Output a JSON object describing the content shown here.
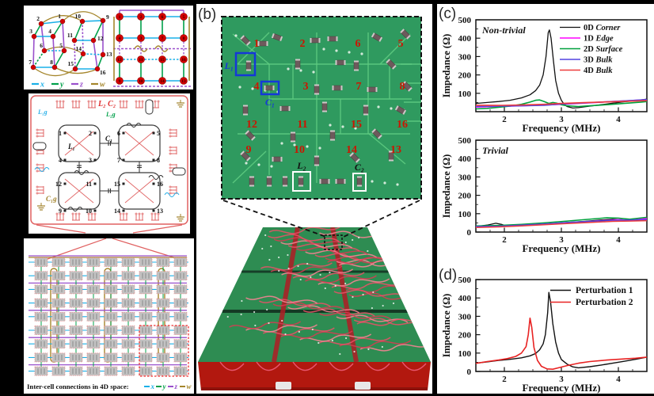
{
  "figure": {
    "panel_a": {
      "lattice": {
        "node_color": "#d40000",
        "legend": [
          {
            "label": "x",
            "color": "#1ab0e8"
          },
          {
            "label": "y",
            "color": "#00a04a"
          },
          {
            "label": "z",
            "color": "#9a50cc"
          },
          {
            "label": "w",
            "color": "#a5862c"
          }
        ],
        "tesseract_node_labels": [
          "1",
          "2",
          "3",
          "4",
          "5",
          "6",
          "7",
          "8",
          "9",
          "10",
          "11",
          "12",
          "13",
          "14",
          "15",
          "16"
        ],
        "grid_node_rows": [
          [
            "1",
            "2",
            "6",
            "5"
          ],
          [
            "4",
            "3",
            "7",
            "8"
          ],
          [
            "12",
            "11",
            "15",
            "16"
          ],
          [
            "9",
            "10",
            "14",
            "13"
          ]
        ]
      },
      "circuit": {
        "labels": {
          "l2c2": "L₂ C₂",
          "l1g": "L₁g",
          "l2g": "L₂g",
          "c1": "C₁",
          "l1": "L₁",
          "c1g": "C₁g"
        },
        "node_rows": [
          [
            "1",
            "2",
            "6",
            "5"
          ],
          [
            "4",
            "3",
            "7",
            "8"
          ],
          [
            "12",
            "11",
            "15",
            "16"
          ],
          [
            "9",
            "10",
            "14",
            "13"
          ]
        ]
      },
      "network": {
        "caption": "Inter-cell connections in 4D space:",
        "legend": [
          {
            "label": "x",
            "color": "#1ab0e8"
          },
          {
            "label": "y",
            "color": "#00a04a"
          },
          {
            "label": "z",
            "color": "#9a50cc"
          },
          {
            "label": "w",
            "color": "#a5862c"
          }
        ]
      }
    },
    "panel_b": {
      "label": "(b)",
      "pcb_number_rows": [
        [
          "1",
          "2",
          "6",
          "5"
        ],
        [
          "4",
          "3",
          "7",
          "8"
        ],
        [
          "12",
          "11",
          "15",
          "16"
        ],
        [
          "9",
          "10",
          "14",
          "13"
        ]
      ],
      "number_color": "#cc1500",
      "component_boxes": {
        "l1": "L₁",
        "c1": "C₁",
        "l2": "L₂",
        "c2": "C₂"
      }
    },
    "panel_c_label": "(c)",
    "panel_d_label": "(d)"
  },
  "chart_data": [
    {
      "type": "line",
      "annotation": "Non-trivial",
      "xlabel": "Frequency (MHz)",
      "ylabel": "Impedance (Ω)",
      "xlim": [
        1.5,
        4.5
      ],
      "ylim": [
        0,
        500
      ],
      "xticks": [
        2,
        3,
        4
      ],
      "yticks": [
        100,
        200,
        300,
        400,
        500
      ],
      "legend_position": "top-right",
      "series": [
        {
          "name": "0D",
          "name2": "Corner",
          "color": "#111111",
          "width": 1.3,
          "points": [
            [
              1.5,
              45
            ],
            [
              1.7,
              50
            ],
            [
              1.9,
              55
            ],
            [
              2.1,
              62
            ],
            [
              2.3,
              75
            ],
            [
              2.45,
              92
            ],
            [
              2.55,
              115
            ],
            [
              2.62,
              145
            ],
            [
              2.68,
              200
            ],
            [
              2.73,
              300
            ],
            [
              2.77,
              430
            ],
            [
              2.79,
              445
            ],
            [
              2.82,
              400
            ],
            [
              2.86,
              280
            ],
            [
              2.9,
              170
            ],
            [
              2.95,
              100
            ],
            [
              3.0,
              62
            ],
            [
              3.05,
              40
            ],
            [
              3.1,
              28
            ],
            [
              3.2,
              20
            ],
            [
              3.3,
              22
            ],
            [
              3.5,
              30
            ],
            [
              3.7,
              38
            ],
            [
              3.9,
              46
            ],
            [
              4.1,
              54
            ],
            [
              4.3,
              60
            ],
            [
              4.5,
              68
            ]
          ]
        },
        {
          "name": "1D",
          "name2": "Edge",
          "color": "#ff00ff",
          "width": 1.6,
          "points": [
            [
              1.5,
              25
            ],
            [
              1.8,
              28
            ],
            [
              2.1,
              30
            ],
            [
              2.4,
              33
            ],
            [
              2.7,
              36
            ],
            [
              3.0,
              40
            ],
            [
              3.3,
              45
            ],
            [
              3.6,
              50
            ],
            [
              3.9,
              55
            ],
            [
              4.2,
              60
            ],
            [
              4.5,
              65
            ]
          ]
        },
        {
          "name": "2D",
          "name2": "Surface",
          "color": "#00a03c",
          "width": 1.6,
          "points": [
            [
              1.5,
              15
            ],
            [
              1.7,
              18
            ],
            [
              1.9,
              24
            ],
            [
              2.1,
              30
            ],
            [
              2.3,
              40
            ],
            [
              2.45,
              52
            ],
            [
              2.55,
              62
            ],
            [
              2.62,
              64
            ],
            [
              2.7,
              55
            ],
            [
              2.78,
              45
            ],
            [
              2.85,
              50
            ],
            [
              2.92,
              46
            ],
            [
              3.0,
              38
            ],
            [
              3.1,
              32
            ],
            [
              3.3,
              28
            ],
            [
              3.5,
              32
            ],
            [
              3.8,
              38
            ],
            [
              4.1,
              45
            ],
            [
              4.4,
              52
            ],
            [
              4.5,
              55
            ]
          ]
        },
        {
          "name": "3D",
          "name2": "Bulk",
          "color": "#5244e0",
          "width": 1.6,
          "points": [
            [
              1.5,
              28
            ],
            [
              1.9,
              30
            ],
            [
              2.3,
              32
            ],
            [
              2.7,
              35
            ],
            [
              3.0,
              42
            ],
            [
              3.4,
              48
            ],
            [
              3.8,
              54
            ],
            [
              4.2,
              60
            ],
            [
              4.5,
              66
            ]
          ]
        },
        {
          "name": "4D",
          "name2": "Bulk",
          "color": "#ee3b3b",
          "width": 1.6,
          "points": [
            [
              1.5,
              35
            ],
            [
              1.9,
              34
            ],
            [
              2.3,
              36
            ],
            [
              2.7,
              40
            ],
            [
              3.0,
              45
            ],
            [
              3.4,
              49
            ],
            [
              3.8,
              53
            ],
            [
              4.2,
              57
            ],
            [
              4.5,
              60
            ]
          ]
        }
      ]
    },
    {
      "type": "line",
      "annotation": "Trivial",
      "xlabel": "Frequency (MHz)",
      "ylabel": "Impedance (Ω)",
      "xlim": [
        1.5,
        4.5
      ],
      "ylim": [
        0,
        500
      ],
      "xticks": [
        2,
        3,
        4
      ],
      "yticks": [
        0,
        100,
        200,
        300,
        400,
        500
      ],
      "legend_position": "none",
      "series": [
        {
          "name": "",
          "name2": "",
          "color": "#111111",
          "width": 1.3,
          "points": [
            [
              1.5,
              30
            ],
            [
              1.7,
              38
            ],
            [
              1.85,
              48
            ],
            [
              1.95,
              42
            ],
            [
              2.05,
              32
            ],
            [
              2.2,
              33
            ],
            [
              2.5,
              38
            ],
            [
              2.8,
              44
            ],
            [
              3.1,
              52
            ],
            [
              3.4,
              58
            ],
            [
              3.7,
              66
            ],
            [
              3.9,
              70
            ],
            [
              4.1,
              66
            ],
            [
              4.3,
              64
            ],
            [
              4.5,
              70
            ]
          ]
        },
        {
          "name": "",
          "name2": "",
          "color": "#ff00ff",
          "width": 1.5,
          "points": [
            [
              1.5,
              28
            ],
            [
              1.9,
              30
            ],
            [
              2.3,
              36
            ],
            [
              2.7,
              42
            ],
            [
              3.1,
              50
            ],
            [
              3.5,
              58
            ],
            [
              3.8,
              64
            ],
            [
              4.0,
              68
            ],
            [
              4.2,
              64
            ],
            [
              4.5,
              74
            ]
          ]
        },
        {
          "name": "",
          "name2": "",
          "color": "#00a03c",
          "width": 1.5,
          "points": [
            [
              1.5,
              33
            ],
            [
              1.9,
              36
            ],
            [
              2.3,
              42
            ],
            [
              2.7,
              50
            ],
            [
              3.1,
              60
            ],
            [
              3.5,
              70
            ],
            [
              3.8,
              78
            ],
            [
              4.0,
              76
            ],
            [
              4.2,
              70
            ],
            [
              4.5,
              80
            ]
          ]
        },
        {
          "name": "",
          "name2": "",
          "color": "#5244e0",
          "width": 1.5,
          "points": [
            [
              1.5,
              30
            ],
            [
              1.9,
              32
            ],
            [
              2.3,
              38
            ],
            [
              2.7,
              44
            ],
            [
              3.1,
              52
            ],
            [
              3.5,
              58
            ],
            [
              3.9,
              64
            ],
            [
              4.2,
              66
            ],
            [
              4.5,
              68
            ]
          ]
        },
        {
          "name": "",
          "name2": "",
          "color": "#ee3b3b",
          "width": 1.5,
          "points": [
            [
              1.5,
              25
            ],
            [
              1.9,
              28
            ],
            [
              2.3,
              33
            ],
            [
              2.7,
              40
            ],
            [
              3.1,
              46
            ],
            [
              3.5,
              52
            ],
            [
              3.9,
              58
            ],
            [
              4.2,
              60
            ],
            [
              4.5,
              62
            ]
          ]
        }
      ]
    },
    {
      "type": "line",
      "annotation": "",
      "xlabel": "Frequency (MHz)",
      "ylabel": "Impedance (Ω)",
      "xlim": [
        1.5,
        4.5
      ],
      "ylim": [
        0,
        500
      ],
      "xticks": [
        2,
        3,
        4
      ],
      "yticks": [
        0,
        100,
        200,
        300,
        400,
        500
      ],
      "legend_position": "top-right",
      "series": [
        {
          "name": "Perturbation 1",
          "name2": "",
          "color": "#111111",
          "width": 1.4,
          "points": [
            [
              1.5,
              45
            ],
            [
              1.7,
              52
            ],
            [
              1.9,
              60
            ],
            [
              2.1,
              66
            ],
            [
              2.3,
              74
            ],
            [
              2.45,
              85
            ],
            [
              2.55,
              98
            ],
            [
              2.62,
              118
            ],
            [
              2.68,
              150
            ],
            [
              2.72,
              200
            ],
            [
              2.76,
              320
            ],
            [
              2.78,
              430
            ],
            [
              2.81,
              380
            ],
            [
              2.85,
              260
            ],
            [
              2.9,
              160
            ],
            [
              2.95,
              100
            ],
            [
              3.0,
              65
            ],
            [
              3.1,
              40
            ],
            [
              3.2,
              25
            ],
            [
              3.3,
              20
            ],
            [
              3.5,
              26
            ],
            [
              3.7,
              35
            ],
            [
              3.9,
              45
            ],
            [
              4.1,
              55
            ],
            [
              4.3,
              66
            ],
            [
              4.5,
              78
            ]
          ]
        },
        {
          "name": "Perturbation 2",
          "name2": "",
          "color": "#e82222",
          "width": 1.6,
          "points": [
            [
              1.5,
              44
            ],
            [
              1.7,
              54
            ],
            [
              1.9,
              62
            ],
            [
              2.05,
              70
            ],
            [
              2.2,
              82
            ],
            [
              2.3,
              100
            ],
            [
              2.38,
              135
            ],
            [
              2.42,
              200
            ],
            [
              2.45,
              290
            ],
            [
              2.48,
              240
            ],
            [
              2.52,
              130
            ],
            [
              2.58,
              60
            ],
            [
              2.65,
              28
            ],
            [
              2.75,
              14
            ],
            [
              2.85,
              12
            ],
            [
              2.95,
              20
            ],
            [
              3.1,
              32
            ],
            [
              3.3,
              45
            ],
            [
              3.5,
              54
            ],
            [
              3.8,
              62
            ],
            [
              4.1,
              68
            ],
            [
              4.3,
              72
            ],
            [
              4.5,
              78
            ]
          ]
        }
      ]
    }
  ]
}
